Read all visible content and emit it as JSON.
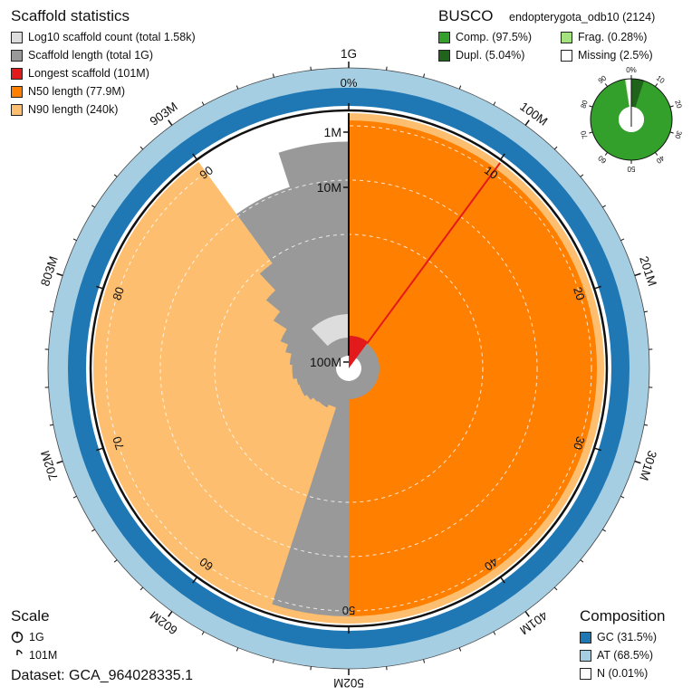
{
  "scaffold_stats": {
    "title": "Scaffold statistics",
    "items": [
      {
        "label": "Log10 scaffold count (total 1.58k)",
        "color": "#dddddd"
      },
      {
        "label": "Scaffold length (total 1G)",
        "color": "#999999"
      },
      {
        "label": "Longest scaffold (101M)",
        "color": "#e31a1c"
      },
      {
        "label": "N50 length (77.9M)",
        "color": "#ff7f00"
      },
      {
        "label": "N90 length (240k)",
        "color": "#fdbf6f"
      }
    ]
  },
  "busco": {
    "title": "BUSCO",
    "lineage": "endopterygota_odb10 (2124)",
    "items": [
      {
        "label": "Comp. (97.5%)",
        "color": "#33a02c"
      },
      {
        "label": "Frag. (0.28%)",
        "color": "#a3e27f"
      },
      {
        "label": "Dupl. (5.04%)",
        "color": "#20641c"
      },
      {
        "label": "Missing (2.5%)",
        "color": "#ffffff"
      }
    ],
    "tick_labels": [
      "0%",
      "10",
      "20",
      "30",
      "40",
      "50",
      "60",
      "70",
      "80",
      "90"
    ]
  },
  "composition": {
    "title": "Composition",
    "items": [
      {
        "label": "GC (31.5%)",
        "color": "#1f78b4"
      },
      {
        "label": "AT (68.5%)",
        "color": "#a6cee3"
      },
      {
        "label": "N (0.01%)",
        "color": "#ffffff"
      }
    ]
  },
  "scale": {
    "title": "Scale",
    "items": [
      {
        "label": "1G"
      },
      {
        "label": "101M"
      }
    ]
  },
  "dataset": "Dataset: GCA_964028335.1",
  "chart_data": {
    "type": "snail",
    "total_length_bp": 1000000000,
    "scaffold_count": 1580,
    "longest_scaffold_bp": 101000000,
    "n50_bp": 77900000,
    "n90_bp": 240000,
    "n50_percent": 50,
    "n90_percent": 90,
    "gc_percent": 31.5,
    "at_percent": 68.5,
    "n_percent": 0.01,
    "outer_ticks": [
      {
        "pct": 0,
        "label": "1G"
      },
      {
        "pct": 10,
        "label": "100M"
      },
      {
        "pct": 20,
        "label": "201M"
      },
      {
        "pct": 30,
        "label": "301M"
      },
      {
        "pct": 40,
        "label": "401M"
      },
      {
        "pct": 50,
        "label": "502M"
      },
      {
        "pct": 60,
        "label": "602M"
      },
      {
        "pct": 70,
        "label": "702M"
      },
      {
        "pct": 80,
        "label": "803M"
      },
      {
        "pct": 90,
        "label": "903M"
      }
    ],
    "inner_ticks": [
      {
        "pct": 0,
        "label": "0%"
      },
      {
        "pct": 10,
        "label": "10"
      },
      {
        "pct": 20,
        "label": "20"
      },
      {
        "pct": 30,
        "label": "30"
      },
      {
        "pct": 40,
        "label": "40"
      },
      {
        "pct": 50,
        "label": "50"
      },
      {
        "pct": 60,
        "label": "60"
      },
      {
        "pct": 70,
        "label": "70"
      },
      {
        "pct": 80,
        "label": "80"
      },
      {
        "pct": 90,
        "label": "90"
      }
    ],
    "radial_ticks": [
      "1M",
      "10M",
      "100M"
    ],
    "scaffold_length_profile": [
      {
        "pct": 50,
        "length_bp": 77900000
      },
      {
        "pct": 52,
        "length_bp": 77000000
      },
      {
        "pct": 55,
        "length_bp": 76000000
      },
      {
        "pct": 57,
        "length_bp": 75000000
      },
      {
        "pct": 58,
        "length_bp": 66000000
      },
      {
        "pct": 62,
        "length_bp": 63000000
      },
      {
        "pct": 64,
        "length_bp": 55000000
      },
      {
        "pct": 66,
        "length_bp": 50000000
      },
      {
        "pct": 70,
        "length_bp": 48000000
      },
      {
        "pct": 72,
        "length_bp": 42000000
      },
      {
        "pct": 76,
        "length_bp": 38000000
      },
      {
        "pct": 79,
        "length_bp": 30000000
      },
      {
        "pct": 81,
        "length_bp": 22000000
      },
      {
        "pct": 84,
        "length_bp": 12000000
      },
      {
        "pct": 86,
        "length_bp": 6000000
      },
      {
        "pct": 88,
        "length_bp": 2500000
      },
      {
        "pct": 90,
        "length_bp": 240000
      },
      {
        "pct": 95,
        "length_bp": 60000
      },
      {
        "pct": 100,
        "length_bp": 20000
      }
    ],
    "busco_percent": {
      "complete": 97.5,
      "duplicated": 5.04,
      "fragmented": 0.28,
      "missing": 2.5
    }
  }
}
